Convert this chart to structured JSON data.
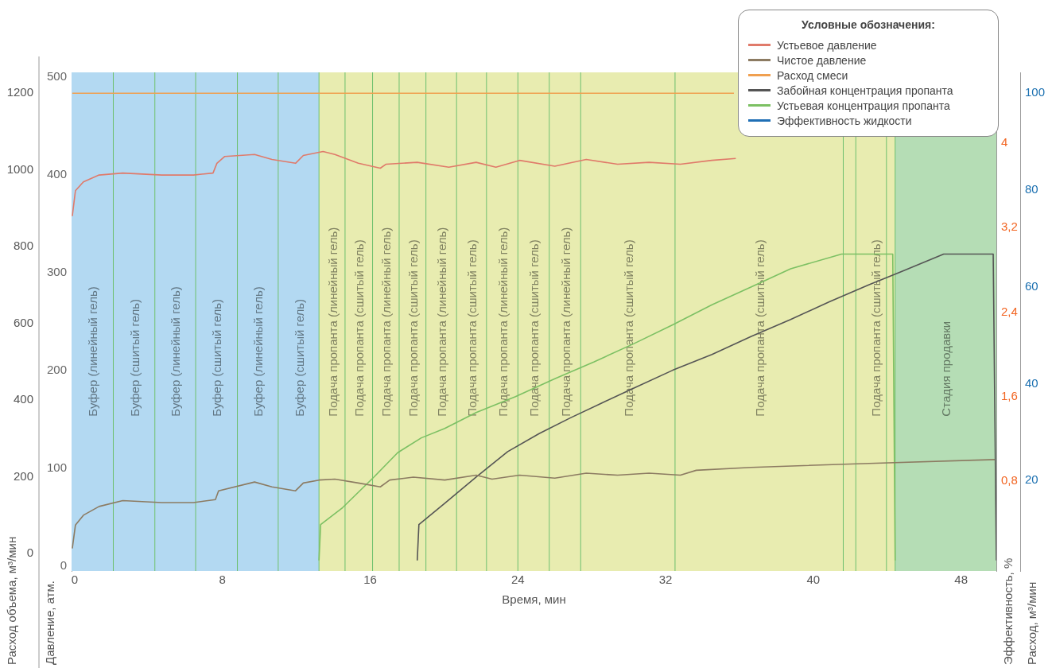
{
  "chart_data": {
    "type": "line",
    "xlabel": "Время, мин",
    "ylabel": "Давление, атм.",
    "y2label": "Эффективность, %",
    "y3label": "Расход, м³/мин",
    "annotations": [
      "Расход объема, м³/мин",
      "0",
      "200",
      "400",
      "600",
      "800",
      "1000",
      "1200"
    ],
    "legend_title": "Условные обозначения:",
    "legend": "top right",
    "xlim": [
      -0.17,
      49.91
    ],
    "xticks": [
      0,
      8,
      16,
      24,
      32,
      40,
      48
    ],
    "ylim": [
      -5,
      505
    ],
    "yticks": [
      0,
      100,
      200,
      300,
      400,
      500
    ],
    "y2lim": [
      -0.05,
      4.67
    ],
    "y2ticks": [
      {
        "value": 0.8,
        "label": "0,8"
      },
      {
        "value": 1.6,
        "label": "1,6"
      },
      {
        "value": 2.4,
        "label": "2,4"
      },
      {
        "value": 3.2,
        "label": "3,2"
      },
      4
    ],
    "y3lim": [
      1.3,
      104.3
    ],
    "y3ticks": [
      20,
      40,
      60,
      80,
      100
    ],
    "series": [
      {
        "name": "Устьевое давление",
        "color": "#e07a6a",
        "axis": "y",
        "x": [
          -0.13,
          0.04,
          0.47,
          1.32,
          2.6,
          4.72,
          6.43,
          7.49,
          7.7,
          8.13,
          9.74,
          10.68,
          11.96,
          12.38,
          13.45,
          14.09,
          15.36,
          16.55,
          16.85,
          18.55,
          20.26,
          21.74,
          22.81,
          24.09,
          26,
          27.7,
          29.4,
          31.1,
          32.8,
          34.5,
          35.8
        ],
        "values": [
          358,
          384,
          393,
          400,
          402,
          400,
          400,
          402,
          412,
          419,
          421,
          416,
          412,
          420,
          424,
          421,
          412,
          407,
          411,
          413,
          408,
          413,
          408,
          415,
          409,
          416,
          411,
          413,
          411,
          415,
          417
        ]
      },
      {
        "name": "Чистое давление",
        "color": "#8c7b62",
        "axis": "y",
        "x": [
          -0.13,
          0.04,
          0.47,
          1.32,
          2.6,
          4.72,
          6.43,
          7.62,
          7.79,
          9.74,
          10.68,
          11.96,
          12.38,
          13.23,
          14.09,
          15.36,
          16.55,
          17.06,
          18.34,
          20.04,
          21.74,
          22.6,
          24.09,
          26,
          27.7,
          29.4,
          31.1,
          32.8,
          33.66,
          36.64,
          43.02,
          49.83
        ],
        "values": [
          18,
          42,
          52,
          61,
          67,
          65,
          65,
          68,
          77,
          86,
          81,
          77,
          85,
          88,
          89,
          85,
          81,
          88,
          91,
          88,
          93,
          89,
          93,
          90,
          95,
          93,
          95,
          93,
          98,
          101,
          105,
          109
        ]
      },
      {
        "name": "Расход смеси",
        "color": "#f0a050",
        "axis": "y3",
        "x": [
          -0.13,
          35.7
        ],
        "values": [
          100,
          100
        ]
      },
      {
        "name": "Забойная концентрация пропанта",
        "color": "#555555",
        "axis": "y2",
        "x": [
          18.55,
          18.64,
          20.04,
          21.74,
          23.45,
          25.15,
          26.85,
          28.55,
          30.26,
          32.38,
          34.51,
          36.64,
          38.77,
          40.89,
          43.02,
          44.72,
          47.06,
          49.74,
          49.91
        ],
        "values": [
          0.05,
          0.39,
          0.59,
          0.84,
          1.08,
          1.25,
          1.4,
          1.54,
          1.68,
          1.85,
          2,
          2.17,
          2.33,
          2.5,
          2.66,
          2.78,
          2.95,
          2.95,
          0.05
        ]
      },
      {
        "name": "Устьевая концентрация пропанта",
        "color": "#7cc063",
        "axis": "y2",
        "x": [
          13.23,
          13.32,
          14.51,
          16.21,
          17.49,
          18.77,
          20.04,
          21.74,
          23.87,
          26,
          28.13,
          30.26,
          32.38,
          34.51,
          36.64,
          38.77,
          41.53,
          44.3,
          44.43
        ],
        "values": [
          0.05,
          0.39,
          0.55,
          0.84,
          1.07,
          1.21,
          1.3,
          1.45,
          1.6,
          1.77,
          1.93,
          2.1,
          2.28,
          2.47,
          2.64,
          2.81,
          2.95,
          2.95,
          0.05
        ]
      },
      {
        "name": "Эффективность жидкости",
        "color": "#1f6fb5",
        "axis": "y3"
      }
    ],
    "ref_lines": [
      {
        "axis": "x",
        "value": 2.09,
        "color": "#6cbf6c"
      },
      {
        "axis": "x",
        "value": 4.34,
        "color": "#6cbf6c"
      },
      {
        "axis": "x",
        "value": 6.55,
        "color": "#6cbf6c"
      },
      {
        "axis": "x",
        "value": 8.81,
        "color": "#6cbf6c"
      },
      {
        "axis": "x",
        "value": 11.02,
        "color": "#6cbf6c"
      },
      {
        "axis": "x",
        "value": 13.23,
        "color": "#6cbf6c"
      },
      {
        "axis": "x",
        "value": 14.64,
        "color": "#6cbf6c"
      },
      {
        "axis": "x",
        "value": 16.13,
        "color": "#6cbf6c"
      },
      {
        "axis": "x",
        "value": 17.57,
        "color": "#6cbf6c"
      },
      {
        "axis": "x",
        "value": 19.02,
        "color": "#6cbf6c"
      },
      {
        "axis": "x",
        "value": 20.68,
        "color": "#6cbf6c"
      },
      {
        "axis": "x",
        "value": 22.3,
        "color": "#6cbf6c"
      },
      {
        "axis": "x",
        "value": 24.0,
        "color": "#6cbf6c"
      },
      {
        "axis": "x",
        "value": 25.7,
        "color": "#6cbf6c"
      },
      {
        "axis": "x",
        "value": 27.4,
        "color": "#6cbf6c"
      },
      {
        "axis": "x",
        "value": 32.51,
        "color": "#6cbf6c"
      },
      {
        "axis": "x",
        "value": 41.62,
        "color": "#6cbf6c"
      },
      {
        "axis": "x",
        "value": 42.3,
        "color": "#6cbf6c"
      },
      {
        "axis": "x",
        "value": 43.96,
        "color": "#6cbf6c"
      },
      {
        "axis": "x",
        "value": 44.43,
        "color": "#6cbf6c"
      }
    ],
    "bands": [
      {
        "axis": "x",
        "from": -0.17,
        "to": 2.09,
        "label": "Буфер (линейный гель)",
        "color": "#b3d9f2"
      },
      {
        "axis": "x",
        "from": 2.09,
        "to": 4.34,
        "label": "Буфер (сшитый гель)",
        "color": "#b3d9f2"
      },
      {
        "axis": "x",
        "from": 4.34,
        "to": 6.55,
        "label": "Буфер (линейный гель)",
        "color": "#b3d9f2"
      },
      {
        "axis": "x",
        "from": 6.55,
        "to": 8.81,
        "label": "Буфер (сшитый гель)",
        "color": "#b3d9f2"
      },
      {
        "axis": "x",
        "from": 8.81,
        "to": 11.02,
        "label": "Буфер (линейный гель)",
        "color": "#b3d9f2"
      },
      {
        "axis": "x",
        "from": 11.02,
        "to": 13.23,
        "label": "Буфер (сшитый гель)",
        "color": "#b3d9f2"
      },
      {
        "axis": "x",
        "from": 13.23,
        "to": 14.64,
        "label": "Подача пропанта (линейный гель)",
        "color": "#e8ecb0"
      },
      {
        "axis": "x",
        "from": 14.64,
        "to": 16.13,
        "label": "Подача пропанта (сшитый гель)",
        "color": "#e8ecb0"
      },
      {
        "axis": "x",
        "from": 16.13,
        "to": 17.57,
        "label": "Подача пропанта (линейный гель)",
        "color": "#e8ecb0"
      },
      {
        "axis": "x",
        "from": 17.57,
        "to": 19.02,
        "label": "Подача пропанта (сшитый гель)",
        "color": "#e8ecb0"
      },
      {
        "axis": "x",
        "from": 19.02,
        "to": 20.68,
        "label": "Подача пропанта (линейный гель)",
        "color": "#e8ecb0"
      },
      {
        "axis": "x",
        "from": 20.68,
        "to": 22.3,
        "label": "Подача пропанта (сшитый гель)",
        "color": "#e8ecb0"
      },
      {
        "axis": "x",
        "from": 22.3,
        "to": 24.0,
        "label": "Подача пропанта (линейный гель)",
        "color": "#e8ecb0"
      },
      {
        "axis": "x",
        "from": 24.0,
        "to": 25.7,
        "label": "Подача пропанта (сшитый гель)",
        "color": "#e8ecb0"
      },
      {
        "axis": "x",
        "from": 25.7,
        "to": 27.4,
        "label": "Подача пропанта (линейный гель)",
        "color": "#e8ecb0"
      },
      {
        "axis": "x",
        "from": 27.4,
        "to": 32.51,
        "label": "Подача пропанта (сшитый гель)",
        "color": "#e8ecb0"
      },
      {
        "axis": "x",
        "from": 32.51,
        "to": 41.62,
        "label": "Подача пропанта (сшитый гель)",
        "color": "#e8ecb0"
      },
      {
        "axis": "x",
        "from": 41.62,
        "to": 42.3,
        "color": "#e8ecb0"
      },
      {
        "axis": "x",
        "from": 42.3,
        "to": 44.43,
        "label": "Подача пропанта (сшитый гель)",
        "color": "#e8ecb0"
      },
      {
        "axis": "x",
        "from": 44.43,
        "to": 49.91,
        "label": "Стадия продавки",
        "color": "#b5ddb5"
      }
    ]
  }
}
